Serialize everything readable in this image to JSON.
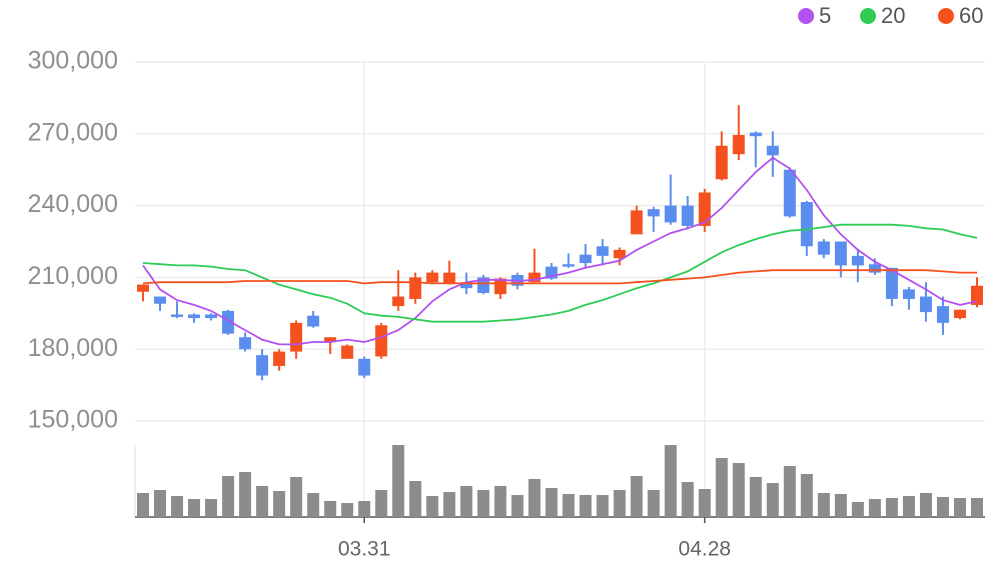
{
  "chart_data": {
    "type": "candlestick",
    "categories": [
      null,
      null,
      null,
      null,
      null,
      null,
      null,
      null,
      null,
      null,
      null,
      null,
      null,
      "03.31",
      null,
      null,
      null,
      null,
      null,
      null,
      null,
      null,
      null,
      null,
      null,
      null,
      null,
      null,
      null,
      null,
      null,
      null,
      null,
      "04.28",
      null,
      null,
      null,
      null,
      null,
      null,
      null,
      null,
      null,
      null,
      null,
      null,
      null,
      null,
      null,
      null
    ],
    "open": [
      204000,
      202000,
      194500,
      194500,
      194500,
      196000,
      185000,
      177500,
      173000,
      179000,
      194000,
      183000,
      176000,
      176000,
      177000,
      198000,
      201000,
      208000,
      207500,
      208000,
      210000,
      203000,
      211000,
      208000,
      214500,
      215500,
      219500,
      223000,
      218000,
      228000,
      238500,
      240000,
      240000,
      231500,
      251000,
      261500,
      270500,
      265000,
      255000,
      241500,
      225000,
      225000,
      219000,
      215500,
      214000,
      205000,
      202000,
      198000,
      193000,
      198500
    ],
    "high": [
      207000,
      202000,
      200000,
      195000,
      195000,
      196500,
      187000,
      180000,
      180000,
      192000,
      196000,
      185000,
      182000,
      177000,
      191000,
      213000,
      212000,
      213000,
      217000,
      212000,
      211000,
      210000,
      212000,
      222000,
      216000,
      220000,
      224000,
      226000,
      222500,
      240000,
      239500,
      253000,
      244000,
      247000,
      271000,
      282000,
      271000,
      271000,
      256000,
      242000,
      226000,
      225000,
      222000,
      218000,
      214000,
      206000,
      208000,
      202000,
      196500,
      210000
    ],
    "low": [
      200000,
      196000,
      193000,
      191000,
      192000,
      186000,
      179000,
      167000,
      171000,
      176000,
      189000,
      178000,
      176000,
      168000,
      176000,
      196000,
      199000,
      208000,
      207000,
      203000,
      203000,
      201000,
      205000,
      208000,
      209000,
      214000,
      214000,
      215000,
      215000,
      228000,
      229000,
      232000,
      230000,
      229000,
      250500,
      259000,
      256000,
      252000,
      235000,
      219000,
      218000,
      210000,
      208000,
      211000,
      198000,
      196500,
      191500,
      186000,
      192500,
      197500
    ],
    "close": [
      207000,
      199000,
      193500,
      193000,
      193000,
      186500,
      180000,
      169000,
      179000,
      191000,
      189500,
      185000,
      181500,
      169000,
      190000,
      202000,
      210000,
      212000,
      212000,
      205500,
      203500,
      209500,
      206500,
      212000,
      209500,
      214500,
      216000,
      219000,
      221500,
      238000,
      235500,
      233000,
      231500,
      245500,
      265000,
      269500,
      269000,
      261000,
      235500,
      223000,
      219500,
      215000,
      215000,
      212000,
      201000,
      201000,
      195500,
      191000,
      196500,
      206500
    ],
    "volume": [
      24,
      27,
      21,
      18,
      18,
      41,
      45,
      31,
      26,
      40,
      24,
      16,
      14,
      16,
      27,
      72,
      36,
      21,
      25,
      31,
      27,
      31,
      22,
      38,
      29,
      23,
      22,
      22,
      27,
      41,
      27,
      72,
      35,
      28,
      59,
      54,
      40,
      34,
      51,
      43,
      24,
      23,
      15,
      18,
      19,
      21,
      24,
      20,
      19,
      19
    ],
    "up_color": "#f4511e",
    "down_color": "#5b8def",
    "volume_color": "#8c8c8c",
    "series": [
      {
        "name": "5",
        "color": "#b44ff0",
        "values": [
          215000,
          205000,
          200500,
          198500,
          196000,
          192000,
          188000,
          184000,
          182000,
          182000,
          183000,
          183000,
          184000,
          183000,
          185000,
          188000,
          193000,
          200000,
          205000,
          208000,
          209000,
          209000,
          208500,
          209000,
          210500,
          212000,
          214000,
          215500,
          217000,
          221500,
          225000,
          228500,
          230500,
          233000,
          239000,
          246500,
          254000,
          260000,
          255500,
          246500,
          236000,
          228000,
          221500,
          216500,
          213000,
          209000,
          205000,
          200500,
          198500,
          200000
        ]
      },
      {
        "name": "20",
        "color": "#2ecc55",
        "values": [
          216000,
          215500,
          215000,
          215000,
          214500,
          213500,
          213000,
          210000,
          207000,
          205000,
          203000,
          201500,
          199000,
          195000,
          194000,
          193500,
          192500,
          191500,
          191500,
          191500,
          191500,
          192000,
          192500,
          193500,
          194500,
          196000,
          198500,
          200500,
          203000,
          205500,
          207500,
          210000,
          212500,
          216500,
          220500,
          223500,
          226000,
          228000,
          229500,
          230000,
          231000,
          232000,
          232000,
          232000,
          232000,
          231500,
          230500,
          230000,
          228000,
          226500
        ]
      },
      {
        "name": "60",
        "color": "#f4511e",
        "values": [
          207500,
          208000,
          208000,
          208000,
          208000,
          208000,
          208500,
          208500,
          208500,
          208500,
          208500,
          208500,
          208500,
          207500,
          208000,
          208000,
          208000,
          207500,
          207500,
          207500,
          207500,
          207500,
          207500,
          207500,
          207500,
          207500,
          207500,
          207500,
          207500,
          208000,
          208500,
          209000,
          209500,
          210000,
          211000,
          212000,
          212500,
          213000,
          213000,
          213000,
          213000,
          213000,
          213000,
          213000,
          213000,
          213000,
          213000,
          212500,
          212000,
          212000
        ]
      }
    ],
    "ylim": [
      150000,
      300000
    ],
    "yticks": [
      {
        "value": 150000,
        "label": "150,000"
      },
      {
        "value": 180000,
        "label": "180,000"
      },
      {
        "value": 210000,
        "label": "210,000"
      },
      {
        "value": 240000,
        "label": "240,000"
      },
      {
        "value": 270000,
        "label": "270,000"
      },
      {
        "value": 300000,
        "label": "300,000"
      }
    ],
    "grid": true,
    "legend": "top-right"
  }
}
